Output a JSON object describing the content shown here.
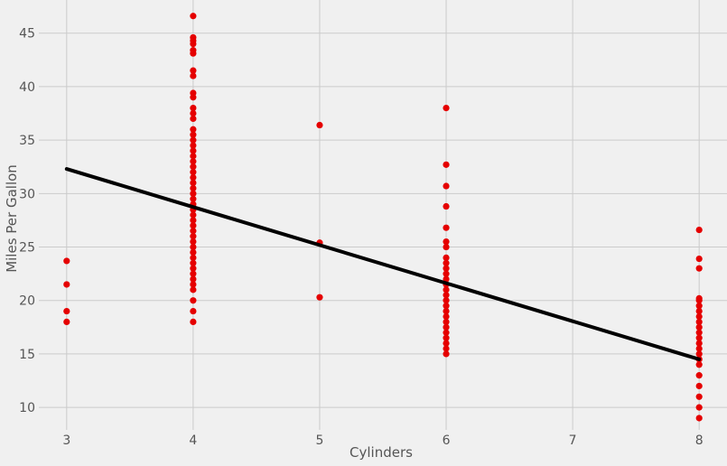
{
  "chart_data": {
    "type": "scatter",
    "title": "",
    "xlabel": "Cylinders",
    "ylabel": "Miles Per Gallon",
    "xlim": [
      2.78,
      8.22
    ],
    "ylim": [
      7.9,
      48.1
    ],
    "xticks": [
      3,
      4,
      5,
      6,
      7,
      8
    ],
    "yticks": [
      10,
      15,
      20,
      25,
      30,
      35,
      40,
      45
    ],
    "grid": true,
    "point_color": "#e50000",
    "line_color": "#000000",
    "background": "#f0f0f0",
    "regression_line": {
      "x": [
        3,
        8
      ],
      "y": [
        32.3,
        14.5
      ]
    },
    "points": [
      {
        "x": 3,
        "y": 18.0
      },
      {
        "x": 3,
        "y": 19.0
      },
      {
        "x": 3,
        "y": 21.5
      },
      {
        "x": 3,
        "y": 23.7
      },
      {
        "x": 4,
        "y": 18.0
      },
      {
        "x": 4,
        "y": 19.0
      },
      {
        "x": 4,
        "y": 20.0
      },
      {
        "x": 4,
        "y": 21.0
      },
      {
        "x": 4,
        "y": 21.5
      },
      {
        "x": 4,
        "y": 22.0
      },
      {
        "x": 4,
        "y": 22.5
      },
      {
        "x": 4,
        "y": 23.0
      },
      {
        "x": 4,
        "y": 23.5
      },
      {
        "x": 4,
        "y": 24.0
      },
      {
        "x": 4,
        "y": 24.5
      },
      {
        "x": 4,
        "y": 25.0
      },
      {
        "x": 4,
        "y": 25.5
      },
      {
        "x": 4,
        "y": 26.0
      },
      {
        "x": 4,
        "y": 26.5
      },
      {
        "x": 4,
        "y": 27.0
      },
      {
        "x": 4,
        "y": 27.5
      },
      {
        "x": 4,
        "y": 28.0
      },
      {
        "x": 4,
        "y": 28.5
      },
      {
        "x": 4,
        "y": 29.0
      },
      {
        "x": 4,
        "y": 29.5
      },
      {
        "x": 4,
        "y": 30.0
      },
      {
        "x": 4,
        "y": 30.5
      },
      {
        "x": 4,
        "y": 31.0
      },
      {
        "x": 4,
        "y": 31.5
      },
      {
        "x": 4,
        "y": 32.0
      },
      {
        "x": 4,
        "y": 32.5
      },
      {
        "x": 4,
        "y": 33.0
      },
      {
        "x": 4,
        "y": 33.5
      },
      {
        "x": 4,
        "y": 34.0
      },
      {
        "x": 4,
        "y": 34.5
      },
      {
        "x": 4,
        "y": 35.0
      },
      {
        "x": 4,
        "y": 35.5
      },
      {
        "x": 4,
        "y": 36.0
      },
      {
        "x": 4,
        "y": 37.0
      },
      {
        "x": 4,
        "y": 37.5
      },
      {
        "x": 4,
        "y": 38.0
      },
      {
        "x": 4,
        "y": 39.0
      },
      {
        "x": 4,
        "y": 39.4
      },
      {
        "x": 4,
        "y": 41.0
      },
      {
        "x": 4,
        "y": 41.5
      },
      {
        "x": 4,
        "y": 43.1
      },
      {
        "x": 4,
        "y": 43.4
      },
      {
        "x": 4,
        "y": 44.0
      },
      {
        "x": 4,
        "y": 44.3
      },
      {
        "x": 4,
        "y": 44.6
      },
      {
        "x": 4,
        "y": 46.6
      },
      {
        "x": 5,
        "y": 20.3
      },
      {
        "x": 5,
        "y": 25.4
      },
      {
        "x": 5,
        "y": 36.4
      },
      {
        "x": 6,
        "y": 15.0
      },
      {
        "x": 6,
        "y": 15.5
      },
      {
        "x": 6,
        "y": 16.0
      },
      {
        "x": 6,
        "y": 16.5
      },
      {
        "x": 6,
        "y": 17.0
      },
      {
        "x": 6,
        "y": 17.5
      },
      {
        "x": 6,
        "y": 18.0
      },
      {
        "x": 6,
        "y": 18.5
      },
      {
        "x": 6,
        "y": 19.0
      },
      {
        "x": 6,
        "y": 19.5
      },
      {
        "x": 6,
        "y": 20.0
      },
      {
        "x": 6,
        "y": 20.5
      },
      {
        "x": 6,
        "y": 21.0
      },
      {
        "x": 6,
        "y": 21.5
      },
      {
        "x": 6,
        "y": 22.0
      },
      {
        "x": 6,
        "y": 22.5
      },
      {
        "x": 6,
        "y": 23.0
      },
      {
        "x": 6,
        "y": 23.5
      },
      {
        "x": 6,
        "y": 24.0
      },
      {
        "x": 6,
        "y": 25.0
      },
      {
        "x": 6,
        "y": 25.5
      },
      {
        "x": 6,
        "y": 26.8
      },
      {
        "x": 6,
        "y": 28.8
      },
      {
        "x": 6,
        "y": 30.7
      },
      {
        "x": 6,
        "y": 32.7
      },
      {
        "x": 6,
        "y": 38.0
      },
      {
        "x": 8,
        "y": 9.0
      },
      {
        "x": 8,
        "y": 10.0
      },
      {
        "x": 8,
        "y": 11.0
      },
      {
        "x": 8,
        "y": 12.0
      },
      {
        "x": 8,
        "y": 13.0
      },
      {
        "x": 8,
        "y": 14.0
      },
      {
        "x": 8,
        "y": 14.5
      },
      {
        "x": 8,
        "y": 15.0
      },
      {
        "x": 8,
        "y": 15.5
      },
      {
        "x": 8,
        "y": 16.0
      },
      {
        "x": 8,
        "y": 16.5
      },
      {
        "x": 8,
        "y": 17.0
      },
      {
        "x": 8,
        "y": 17.5
      },
      {
        "x": 8,
        "y": 18.0
      },
      {
        "x": 8,
        "y": 18.5
      },
      {
        "x": 8,
        "y": 19.0
      },
      {
        "x": 8,
        "y": 19.5
      },
      {
        "x": 8,
        "y": 20.0
      },
      {
        "x": 8,
        "y": 20.2
      },
      {
        "x": 8,
        "y": 23.0
      },
      {
        "x": 8,
        "y": 23.9
      },
      {
        "x": 8,
        "y": 26.6
      }
    ]
  }
}
